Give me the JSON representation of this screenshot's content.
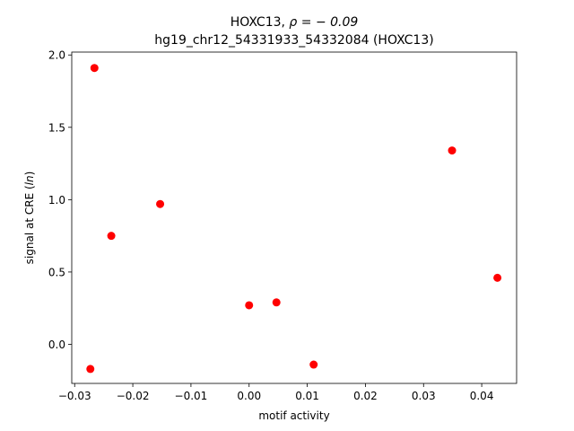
{
  "chart_data": {
    "type": "scatter",
    "title_line1_prefix": "HOXC13, ",
    "title_line1_rho": "ρ = − 0.09",
    "title_line2": "hg19_chr12_54331933_54332084 (HOXC13)",
    "xlabel": "motif activity",
    "ylabel_prefix": "signal at CRE (",
    "ylabel_italic": "ln",
    "ylabel_suffix": ")",
    "xlim": [
      -0.0305,
      0.046
    ],
    "ylim": [
      -0.27,
      2.02
    ],
    "xticks": [
      {
        "value": -0.03,
        "label": "−0.03"
      },
      {
        "value": -0.02,
        "label": "−0.02"
      },
      {
        "value": -0.01,
        "label": "−0.01"
      },
      {
        "value": 0.0,
        "label": "0.00"
      },
      {
        "value": 0.01,
        "label": "0.01"
      },
      {
        "value": 0.02,
        "label": "0.02"
      },
      {
        "value": 0.03,
        "label": "0.03"
      },
      {
        "value": 0.04,
        "label": "0.04"
      }
    ],
    "yticks": [
      {
        "value": 0.0,
        "label": "0.0"
      },
      {
        "value": 0.5,
        "label": "0.5"
      },
      {
        "value": 1.0,
        "label": "1.0"
      },
      {
        "value": 1.5,
        "label": "1.5"
      },
      {
        "value": 2.0,
        "label": "2.0"
      }
    ],
    "marker_color": "#ff0000",
    "grid": false,
    "points": [
      {
        "x": -0.0266,
        "y": 1.91
      },
      {
        "x": -0.0237,
        "y": 0.75
      },
      {
        "x": -0.0153,
        "y": 0.97
      },
      {
        "x": -0.0273,
        "y": -0.17
      },
      {
        "x": 0.0,
        "y": 0.27
      },
      {
        "x": 0.0047,
        "y": 0.29
      },
      {
        "x": 0.0111,
        "y": -0.14
      },
      {
        "x": 0.0349,
        "y": 1.34
      },
      {
        "x": 0.0427,
        "y": 0.46
      }
    ]
  }
}
